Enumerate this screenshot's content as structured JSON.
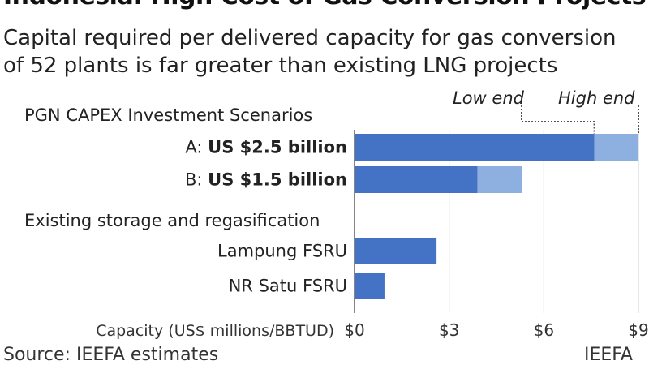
{
  "title": "Indonesia: High Cost of Gas Conversion Projects",
  "subtitle_line1": "Capital required per delivered capacity for gas conversion",
  "subtitle_line2": "of 52 plants is far greater than existing LNG projects",
  "source": "Source: IEEFA estimates",
  "brand": "IEEFA",
  "colors": {
    "low": "#4472c4",
    "high": "#8eb0e0",
    "grid": "#cccccc",
    "marker": "#555555"
  },
  "chart_data": {
    "type": "bar",
    "orientation": "horizontal",
    "stacked": true,
    "section_labels": [
      "PGN CAPEX Investment Scenarios",
      "Existing storage and regasification"
    ],
    "categories": [
      {
        "prefix": "A: ",
        "label": "US $2.5 billion",
        "bold": true,
        "low": 7.6,
        "high": 9.0
      },
      {
        "prefix": "B: ",
        "label": "US $1.5 billion",
        "bold": true,
        "low": 3.9,
        "high": 5.3
      },
      {
        "prefix": "",
        "label": "Lampung FSRU",
        "bold": false,
        "low": 2.6,
        "high": null
      },
      {
        "prefix": "",
        "label": "NR Satu FSRU",
        "bold": false,
        "low": 0.95,
        "high": null
      }
    ],
    "markers": [
      "Low end",
      "High end"
    ],
    "xlabel": "Capacity (US$ millions/BBTUD)",
    "xticks": [
      "$0",
      "$3",
      "$6",
      "$9"
    ],
    "tick_values": [
      0,
      3,
      6,
      9
    ],
    "xlim": [
      0,
      9
    ],
    "grid": true
  }
}
